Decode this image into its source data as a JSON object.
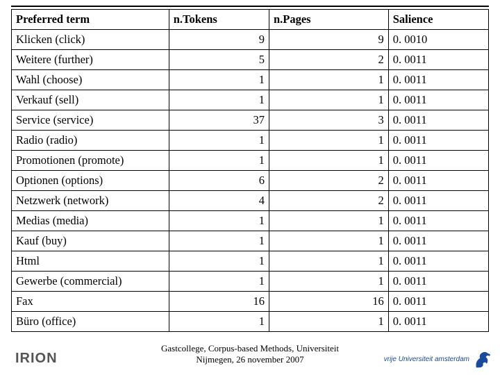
{
  "table": {
    "columns": [
      "Preferred term",
      "n.Tokens",
      "n.Pages",
      "Salience"
    ],
    "col_align": [
      "left",
      "right",
      "right",
      "left"
    ],
    "rows": [
      [
        "Klicken (click)",
        "9",
        "9",
        "0. 0010"
      ],
      [
        "Weitere (further)",
        "5",
        "2",
        "0. 0011"
      ],
      [
        "Wahl (choose)",
        "1",
        "1",
        "0. 0011"
      ],
      [
        "Verkauf (sell)",
        "1",
        "1",
        "0. 0011"
      ],
      [
        "Service (service)",
        "37",
        "3",
        "0. 0011"
      ],
      [
        "Radio (radio)",
        "1",
        "1",
        "0. 0011"
      ],
      [
        "Promotionen (promote)",
        "1",
        "1",
        "0. 0011"
      ],
      [
        "Optionen (options)",
        "6",
        "2",
        "0. 0011"
      ],
      [
        "Netzwerk (network)",
        "4",
        "2",
        "0. 0011"
      ],
      [
        "Medias (media)",
        "1",
        "1",
        "0. 0011"
      ],
      [
        "Kauf (buy)",
        "1",
        "1",
        "0. 0011"
      ],
      [
        "Html",
        "1",
        "1",
        "0. 0011"
      ],
      [
        "Gewerbe (commercial)",
        "1",
        "1",
        "0. 0011"
      ],
      [
        "Fax",
        "16",
        "16",
        "0. 0011"
      ],
      [
        "Büro (office)",
        "1",
        "1",
        "0. 0011"
      ]
    ]
  },
  "footer": {
    "caption_line1": "Gastcollege, Corpus-based Methods, Universiteit",
    "caption_line2": "Nijmegen, 26 november 2007",
    "left_logo_text": "IRION",
    "right_logo_text": "vrije Universiteit amsterdam"
  },
  "style": {
    "font_family": "Times New Roman",
    "header_fontsize_pt": 13,
    "cell_fontsize_pt": 13,
    "border_color": "#000000",
    "bg_color": "#ffffff",
    "left_logo_color": "#555555",
    "right_logo_color": "#1a4a9c",
    "griffin_color": "#1a4a9c"
  }
}
